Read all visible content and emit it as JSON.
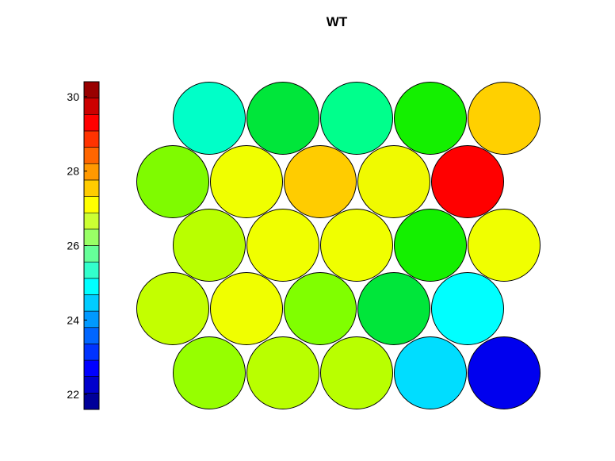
{
  "chart_data": {
    "type": "heatmap",
    "subtype": "som-hexagonal-map",
    "title": "WT",
    "grid": {
      "rows": 5,
      "cols": 5
    },
    "colorbar": {
      "min": 21.6,
      "max": 30.4,
      "tick_values": [
        22,
        24,
        26,
        28,
        30
      ],
      "tick_labels": [
        "22",
        "24",
        "26",
        "28",
        "30"
      ],
      "levels": 20,
      "colormap": "jet",
      "placement": "left"
    },
    "values": [
      [
        25.0,
        26.2,
        25.4,
        26.8,
        28.8
      ],
      [
        27.2,
        28.0,
        28.8,
        28.0,
        30.3
      ],
      [
        27.6,
        28.0,
        28.0,
        26.0,
        28.0
      ],
      [
        27.6,
        28.0,
        27.0,
        26.0,
        24.2
      ],
      [
        27.2,
        27.6,
        27.6,
        23.4,
        21.8
      ]
    ],
    "colors": [
      [
        "#00ffc8",
        "#00e63a",
        "#00ff8c",
        "#14f000",
        "#ffd000"
      ],
      [
        "#7ffb00",
        "#f0ff00",
        "#ffcc00",
        "#f0fa00",
        "#ff0000"
      ],
      [
        "#b9ff00",
        "#f0ff00",
        "#f0ff00",
        "#14f000",
        "#f0ff00"
      ],
      [
        "#c3ff00",
        "#f0ff00",
        "#80ff00",
        "#00e63a",
        "#00ffff"
      ],
      [
        "#96ff00",
        "#b9ff00",
        "#b9ff00",
        "#00ddff",
        "#0000ee"
      ]
    ]
  }
}
